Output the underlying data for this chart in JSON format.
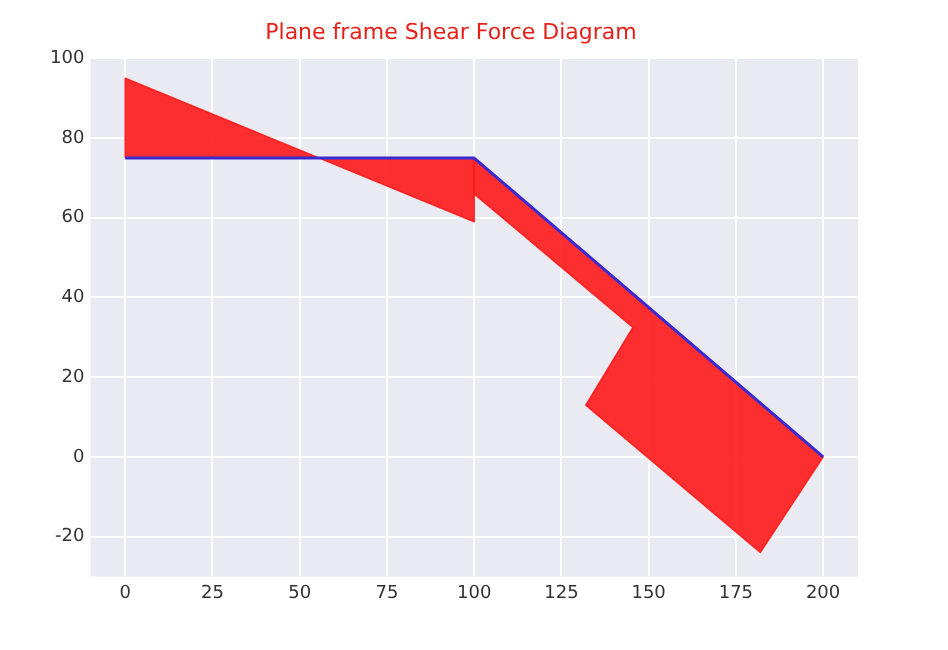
{
  "chart_data": {
    "type": "line",
    "title": "Plane frame Shear Force Diagram",
    "series": [
      {
        "type": "area",
        "color": "#ff1a1a",
        "x": [
          0,
          0,
          100,
          100,
          0
        ],
        "values": [
          75,
          95,
          59,
          75,
          75
        ]
      },
      {
        "type": "area",
        "color": "#ff1a1a",
        "x": [
          100,
          100,
          145.5,
          132,
          182,
          200,
          100
        ],
        "values": [
          75,
          66,
          32.5,
          13,
          -24,
          0,
          75
        ]
      },
      {
        "type": "line",
        "color": "#3a2ad0",
        "x": [
          0,
          100,
          200
        ],
        "values": [
          75,
          75,
          0
        ]
      }
    ],
    "xlim": [
      -10,
      210
    ],
    "xticks": [
      0,
      25,
      50,
      75,
      100,
      125,
      150,
      175,
      200
    ],
    "ylim": [
      -30,
      100
    ],
    "yticks": [
      -20,
      0,
      20,
      40,
      60,
      80,
      100
    ],
    "grid": true,
    "legend": false,
    "marker": "none"
  }
}
